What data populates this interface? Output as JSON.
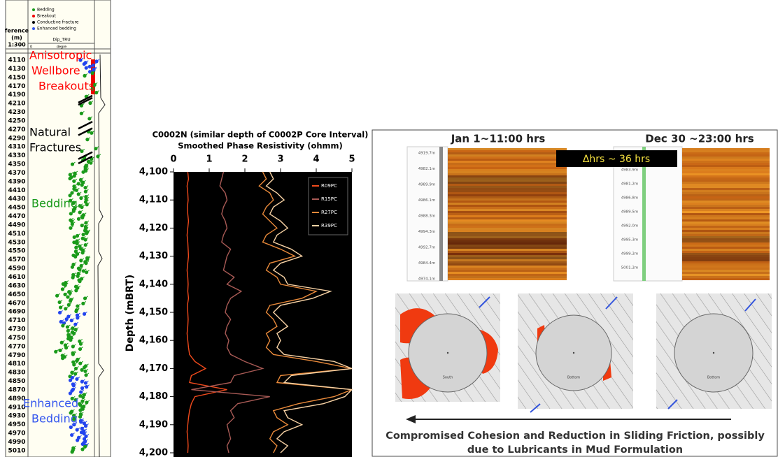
{
  "left_log": {
    "depth_header": "ference",
    "depth_unit": "(m)",
    "depth_scale": "1:300",
    "track_label": "Dip_TRU",
    "scale_left": "0",
    "scale_unit": "degre",
    "legend": [
      "Bedding",
      "Breakout",
      "Conductive fracture",
      "Enhanced bedding"
    ],
    "depths": [
      4110,
      4130,
      4150,
      4170,
      4190,
      4210,
      4230,
      4250,
      4270,
      4290,
      4310,
      4330,
      4350,
      4370,
      4390,
      4410,
      4430,
      4450,
      4470,
      4490,
      4510,
      4530,
      4550,
      4570,
      4590,
      4610,
      4630,
      4650,
      4670,
      4690,
      4710,
      4730,
      4750,
      4770,
      4790,
      4810,
      4830,
      4850,
      4870,
      4890,
      4910,
      4930,
      4950,
      4970,
      4990,
      5010
    ],
    "annotations": [
      {
        "lines": [
          "Anisotropic",
          "Wellbore",
          "Breakouts"
        ],
        "color": "#ff0000"
      },
      {
        "lines": [
          "Natural",
          "Fractures"
        ],
        "color": "#000000"
      },
      {
        "lines": [
          "Bedding"
        ],
        "color": "#1a9a1a"
      },
      {
        "lines": [
          "Enhanced",
          "Bedding"
        ],
        "color": "#3355ee"
      }
    ]
  },
  "chart_data": {
    "type": "line",
    "title": "C0002N (similar depth of C0002P Core Interval)",
    "subtitle": "Smoothed Phase Resistivity (ohmm)",
    "y_label": "Depth (mBRT)",
    "depth": [
      4100,
      4102.5,
      4105,
      4107.5,
      4110,
      4112.5,
      4115,
      4117.5,
      4120,
      4122.5,
      4125,
      4127.5,
      4130,
      4132.5,
      4135,
      4137.5,
      4140,
      4142.5,
      4145,
      4147.5,
      4150,
      4152.5,
      4155,
      4157.5,
      4160,
      4162.5,
      4165,
      4167.5,
      4170,
      4172.5,
      4175,
      4177.5,
      4180,
      4182.5,
      4185,
      4187.5,
      4190,
      4192.5,
      4195,
      4197.5,
      4200
    ],
    "series": [
      {
        "name": "R09PC",
        "color": "#f04a1c",
        "values": [
          0.4,
          0.42,
          0.38,
          0.4,
          0.41,
          0.39,
          0.4,
          0.42,
          0.4,
          0.38,
          0.4,
          0.41,
          0.42,
          0.4,
          0.38,
          0.4,
          0.41,
          0.4,
          0.42,
          0.39,
          0.4,
          0.41,
          0.4,
          0.38,
          0.4,
          0.42,
          0.45,
          0.6,
          0.9,
          0.5,
          0.45,
          1.5,
          0.6,
          0.5,
          0.45,
          0.42,
          0.4,
          0.38,
          0.4,
          0.41,
          0.4
        ]
      },
      {
        "name": "R15PC",
        "color": "#a85a55",
        "values": [
          1.4,
          1.35,
          1.3,
          1.45,
          1.5,
          1.4,
          1.35,
          1.45,
          1.5,
          1.4,
          1.35,
          1.6,
          1.5,
          1.45,
          1.4,
          1.7,
          1.5,
          1.9,
          1.6,
          1.5,
          1.45,
          1.6,
          1.5,
          1.45,
          1.55,
          1.5,
          1.6,
          2.0,
          2.5,
          1.7,
          1.6,
          0.5,
          2.7,
          1.8,
          1.6,
          1.7,
          1.5,
          1.55,
          1.6,
          1.5,
          1.55
        ]
      },
      {
        "name": "R27PC",
        "color": "#e8893a",
        "values": [
          2.5,
          2.6,
          2.4,
          2.7,
          2.8,
          2.6,
          2.5,
          2.7,
          2.9,
          2.6,
          2.5,
          3.0,
          3.4,
          2.7,
          2.6,
          2.9,
          3.0,
          4.0,
          3.6,
          2.7,
          2.6,
          2.8,
          2.9,
          2.6,
          2.7,
          2.6,
          2.8,
          4.0,
          5.0,
          3.0,
          2.9,
          5.0,
          4.5,
          3.5,
          2.8,
          2.9,
          3.2,
          2.8,
          2.7,
          2.9,
          2.8
        ]
      },
      {
        "name": "R39PC",
        "color": "#f8d2a4",
        "values": [
          2.7,
          2.8,
          2.6,
          2.9,
          3.1,
          2.8,
          2.7,
          3.0,
          3.2,
          2.9,
          2.8,
          3.3,
          3.6,
          3.0,
          2.8,
          3.1,
          3.2,
          4.4,
          3.9,
          3.0,
          2.8,
          3.0,
          3.2,
          2.9,
          3.0,
          2.9,
          3.1,
          4.5,
          5.0,
          3.3,
          3.1,
          5.0,
          4.8,
          4.2,
          3.1,
          3.2,
          3.6,
          3.1,
          2.9,
          3.2,
          3.0
        ]
      }
    ],
    "xlim": [
      0,
      5
    ],
    "xticks": [
      0,
      1,
      2,
      3,
      4,
      5
    ],
    "ylim": [
      4100,
      4200
    ],
    "yticks": [
      {
        "value": 4100,
        "label": "4,100"
      },
      {
        "value": 4110,
        "label": "4,110"
      },
      {
        "value": 4120,
        "label": "4,120"
      },
      {
        "value": 4130,
        "label": "4,130"
      },
      {
        "value": 4140,
        "label": "4,140"
      },
      {
        "value": 4150,
        "label": "4,150"
      },
      {
        "value": 4160,
        "label": "4,160"
      },
      {
        "value": 4170,
        "label": "4,170"
      },
      {
        "value": 4180,
        "label": "4,180"
      },
      {
        "value": 4190,
        "label": "4,190"
      },
      {
        "value": 4200,
        "label": "4,200"
      }
    ],
    "legend": "top-right"
  },
  "right_panel": {
    "left_title": "Jan 1~11:00 hrs",
    "right_title": "Dec 30 ~23:00 hrs",
    "delta": "Δhrs ~ 36 hrs",
    "left_depths": [
      "4919.7m",
      "4982.1m",
      "4989.9m",
      "4986.1m",
      "4988.3m",
      "4994.3m",
      "4992.7m",
      "4984.4m",
      "4974.1m"
    ],
    "right_depths": [
      "4983.9m",
      "4981.2m",
      "4986.8m",
      "4989.5m",
      "4992.0m",
      "4995.3m",
      "4999.2m",
      "5001.2m"
    ],
    "circle_labels": [
      "South",
      "Bottom",
      "Bottom"
    ],
    "caption": [
      "Compromised Cohesion and Reduction in Sliding Friction, possibly",
      "due to Lubricants in Mud Formulation"
    ]
  }
}
